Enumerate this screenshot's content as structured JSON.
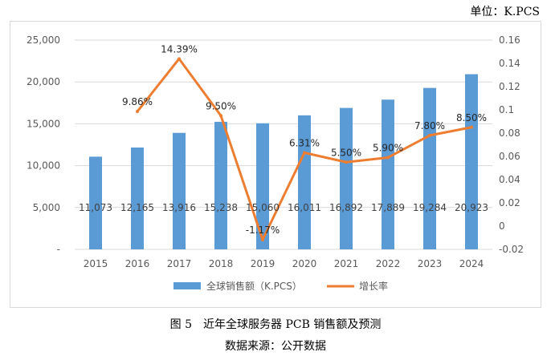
{
  "unit_label": "单位：K.PCS",
  "caption": "图 5　近年全球服务器 PCB 销售额及预测",
  "source": "数据来源：公开数据",
  "colors": {
    "bar": "#5b9bd5",
    "line": "#ed7d31",
    "grid": "#d9d9d9"
  },
  "chart_data": {
    "type": "bar",
    "title": "",
    "categories": [
      "2015",
      "2016",
      "2017",
      "2018",
      "2019",
      "2020",
      "2021",
      "2022",
      "2023",
      "2024"
    ],
    "series": [
      {
        "name": "全球销售额（K.PCS）",
        "type": "bar",
        "axis": "left",
        "values": [
          11073,
          12165,
          13916,
          15238,
          15060,
          16011,
          16892,
          17889,
          19284,
          20923
        ],
        "labels": [
          "11,073",
          "12,165",
          "13,916",
          "15,238",
          "15,060",
          "16,011",
          "16,892",
          "17,889",
          "19,284",
          "20,923"
        ]
      },
      {
        "name": "增长率",
        "type": "line",
        "axis": "right",
        "values": [
          null,
          0.0986,
          0.1439,
          0.095,
          -0.0117,
          0.0631,
          0.055,
          0.059,
          0.078,
          0.085
        ],
        "labels": [
          "",
          "9.86%",
          "14.39%",
          "9.50%",
          "-1.17%",
          "6.31%",
          "5.50%",
          "5.90%",
          "7.80%",
          "8.50%"
        ]
      }
    ],
    "y_left": {
      "min": 0,
      "max": 25000,
      "ticks": [
        "-",
        "5,000",
        "10,000",
        "15,000",
        "20,000",
        "25,000"
      ]
    },
    "y_right": {
      "min": -0.02,
      "max": 0.16,
      "ticks": [
        "-0.02",
        "0",
        "0.02",
        "0.04",
        "0.06",
        "0.08",
        "0.1",
        "0.12",
        "0.14",
        "0.16"
      ]
    },
    "legend_position": "bottom"
  }
}
